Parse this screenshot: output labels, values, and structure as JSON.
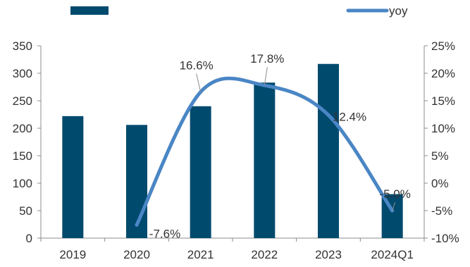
{
  "chart_data": {
    "type": "bar",
    "categories": [
      "2019",
      "2020",
      "2021",
      "2022",
      "2023",
      "2024Q1"
    ],
    "series": [
      {
        "type": "bar",
        "axis": "left",
        "color": "#004a6e",
        "values": [
          222,
          206,
          240,
          283,
          317,
          80
        ]
      },
      {
        "name": "yoy",
        "type": "line",
        "smooth": true,
        "axis": "right",
        "color": "#4a86c5",
        "values": [
          null,
          -7.6,
          16.6,
          17.8,
          12.4,
          -5.0
        ],
        "data_labels": [
          "",
          "-7.6%",
          "16.6%",
          "17.8%",
          "12.4%",
          "-5.0%"
        ]
      }
    ],
    "y_left": {
      "ylim": [
        0,
        350
      ],
      "ticks": [
        0,
        50,
        100,
        150,
        200,
        250,
        300,
        350
      ],
      "tick_labels": [
        "0",
        "50",
        "100",
        "150",
        "200",
        "250",
        "300",
        "350"
      ]
    },
    "y_right": {
      "ylim": [
        -10,
        25
      ],
      "ticks": [
        -10,
        -5,
        0,
        5,
        10,
        15,
        20,
        25
      ],
      "tick_labels": [
        "-10%",
        "-5%",
        "0%",
        "5%",
        "10%",
        "15%",
        "20%",
        "25%"
      ]
    },
    "grid": false,
    "legend": "top"
  }
}
